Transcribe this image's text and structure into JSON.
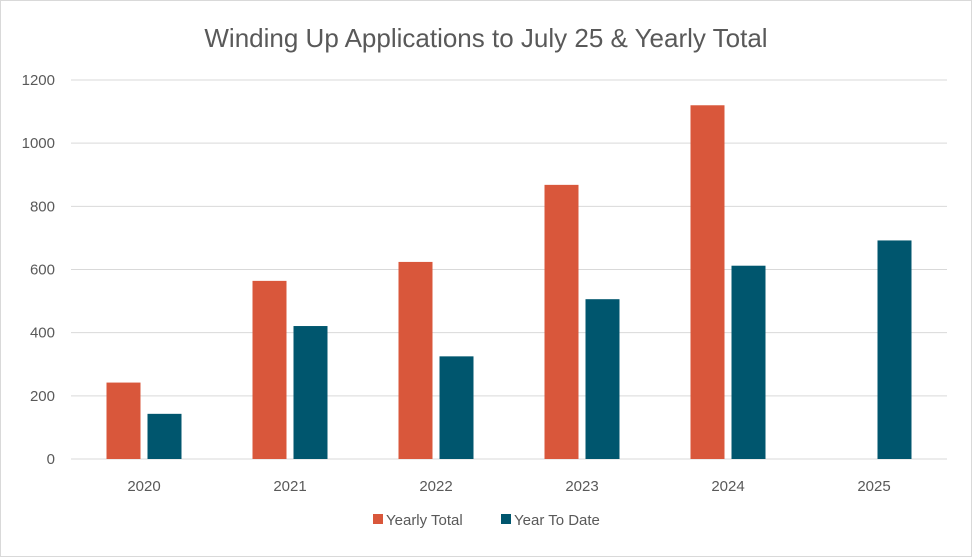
{
  "chart_data": {
    "type": "bar",
    "title": "Winding Up Applications to July 25 & Yearly Total",
    "xlabel": "",
    "ylabel": "",
    "categories": [
      "2020",
      "2021",
      "2022",
      "2023",
      "2024",
      "2025"
    ],
    "series": [
      {
        "name": "Yearly Total",
        "color": "#d9573b",
        "values": [
          242,
          564,
          624,
          868,
          1120,
          null
        ]
      },
      {
        "name": "Year To Date",
        "color": "#00566e",
        "values": [
          143,
          421,
          325,
          506,
          612,
          692
        ]
      }
    ],
    "ylim": [
      0,
      1200
    ],
    "yticks": [
      0,
      200,
      400,
      600,
      800,
      1000,
      1200
    ],
    "grid": true,
    "legend_position": "bottom"
  }
}
